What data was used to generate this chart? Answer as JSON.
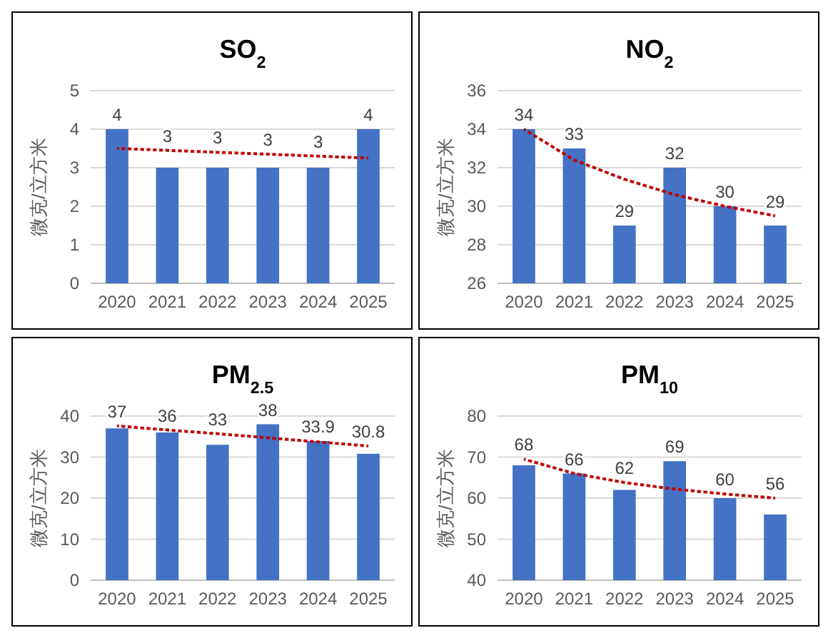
{
  "chart_data": [
    {
      "type": "bar",
      "title": "SO$_{2}$",
      "ylabel": "微克/立方米",
      "categories": [
        "2020",
        "2021",
        "2022",
        "2023",
        "2024",
        "2025"
      ],
      "ylim": [
        0,
        5
      ],
      "yticks": [
        0,
        1,
        2,
        3,
        4,
        5
      ],
      "grid": "y",
      "series": [
        {
          "color": "#4472c4",
          "values": [
            4,
            3,
            3,
            3,
            3,
            4
          ],
          "value_labels": [
            "4",
            "3",
            "3",
            "3",
            "3",
            "4"
          ]
        },
        {
          "type": "line",
          "color": "#c00000",
          "line_style": "dotted",
          "values": [
            3.5,
            3.45,
            3.4,
            3.35,
            3.3,
            3.25
          ]
        }
      ]
    },
    {
      "type": "bar",
      "title": "NO$_{2}$",
      "ylabel": "微克/立方米",
      "categories": [
        "2020",
        "2021",
        "2022",
        "2023",
        "2024",
        "2025"
      ],
      "ylim": [
        26,
        36
      ],
      "yticks": [
        26,
        28,
        30,
        32,
        34,
        36
      ],
      "grid": "y",
      "series": [
        {
          "color": "#4472c4",
          "values": [
            34,
            33,
            29,
            32,
            30,
            29
          ],
          "value_labels": [
            "34",
            "33",
            "29",
            "32",
            "30",
            "29"
          ]
        },
        {
          "type": "line",
          "color": "#c00000",
          "line_style": "dotted",
          "values": [
            34,
            32.4,
            31.4,
            30.6,
            30,
            29.5
          ]
        }
      ]
    },
    {
      "type": "bar",
      "title": "PM$_{2.5}$",
      "ylabel": "微克/立方米",
      "categories": [
        "2020",
        "2021",
        "2022",
        "2023",
        "2024",
        "2025"
      ],
      "ylim": [
        0,
        40
      ],
      "yticks": [
        0,
        10,
        20,
        30,
        40
      ],
      "grid": "y",
      "series": [
        {
          "color": "#4472c4",
          "values": [
            37,
            36,
            33,
            38,
            33.9,
            30.8
          ],
          "value_labels": [
            "37",
            "36",
            "33",
            "38",
            "33.9",
            "30.8"
          ]
        },
        {
          "type": "line",
          "color": "#c00000",
          "line_style": "dotted",
          "values": [
            37.6,
            36.6,
            35.7,
            34.7,
            33.7,
            32.7
          ]
        }
      ]
    },
    {
      "type": "bar",
      "title": "PM$_{10}$",
      "ylabel": "微克/立方米",
      "categories": [
        "2020",
        "2021",
        "2022",
        "2023",
        "2024",
        "2025"
      ],
      "ylim": [
        40,
        80
      ],
      "yticks": [
        40,
        50,
        60,
        70,
        80
      ],
      "grid": "y",
      "series": [
        {
          "color": "#4472c4",
          "values": [
            68,
            66,
            62,
            69,
            60,
            56
          ],
          "value_labels": [
            "68",
            "66",
            "62",
            "69",
            "60",
            "56"
          ]
        },
        {
          "type": "line",
          "color": "#c00000",
          "line_style": "dotted",
          "values": [
            69.5,
            66,
            63.8,
            62.2,
            61,
            60
          ]
        }
      ]
    }
  ]
}
